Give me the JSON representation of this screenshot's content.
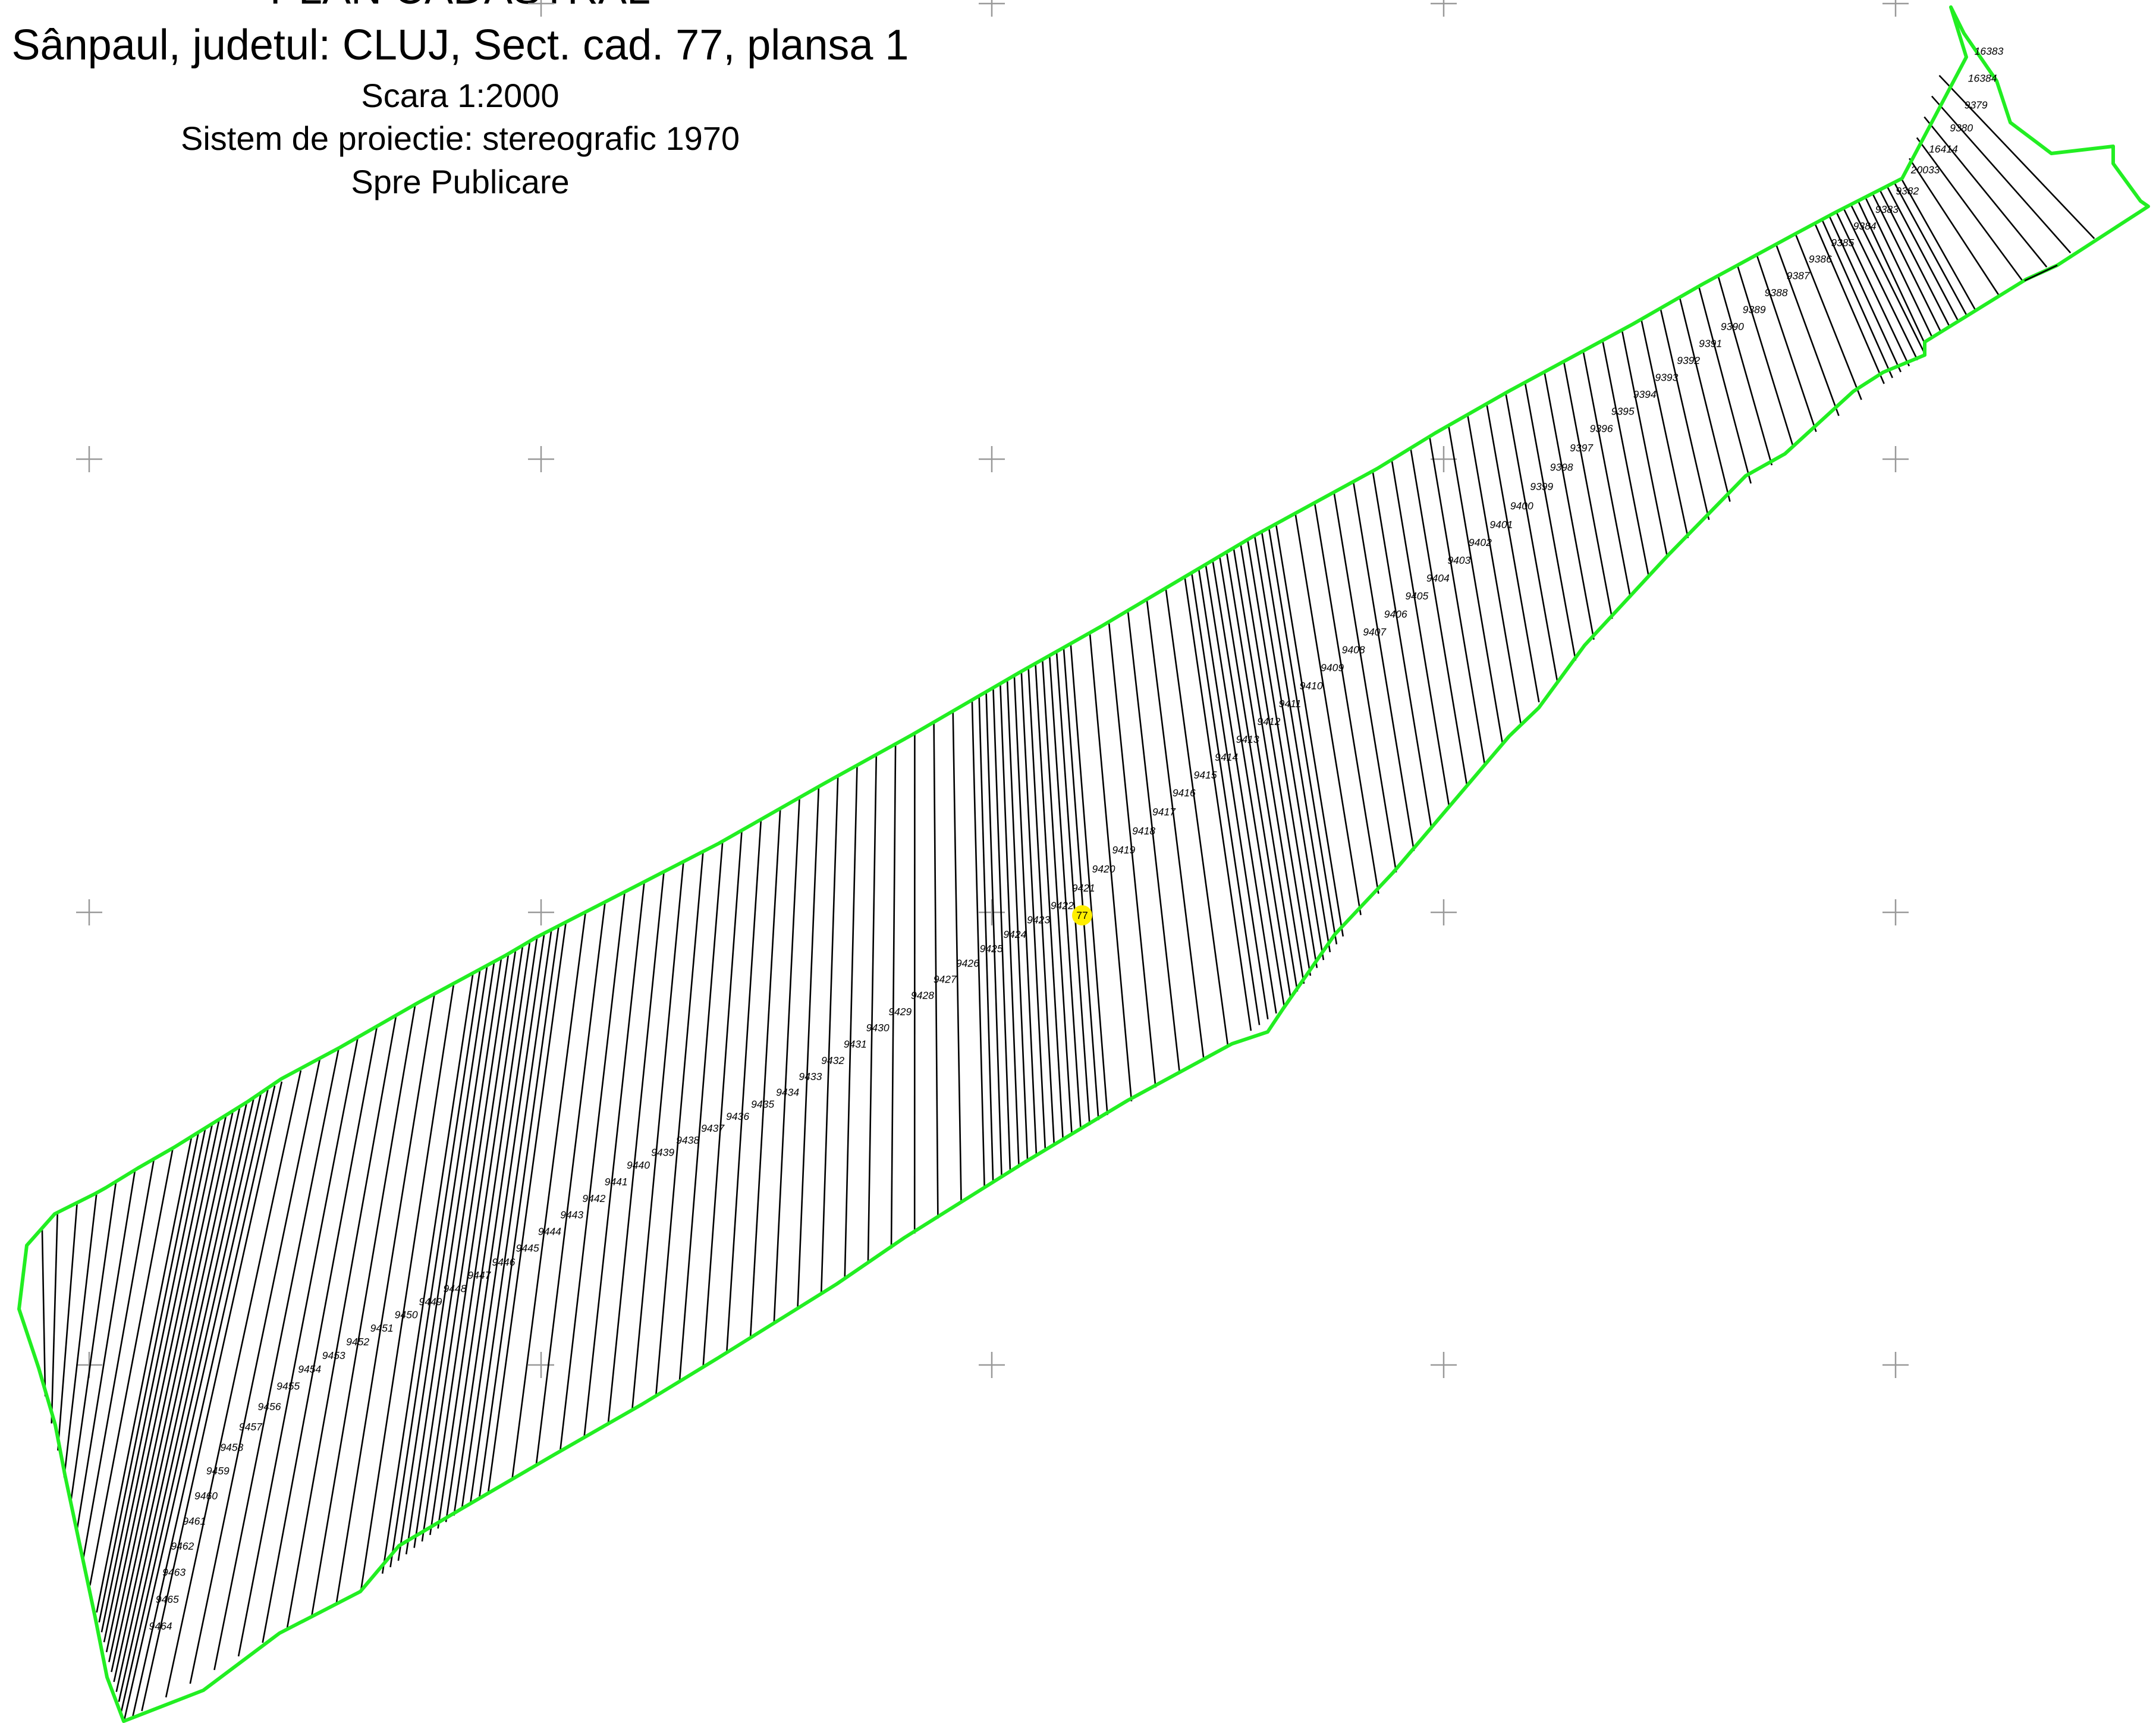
{
  "header": {
    "title": "PLAN CADASTRAL",
    "subtitle": "Sânpaul, judetul: CLUJ, Sect. cad. 77, plansa 1",
    "scale": "Scara 1:2000",
    "projection": "Sistem de proiectie: stereografic 1970",
    "status": "Spre Publicare"
  },
  "sector": {
    "label": "77",
    "marker_color": "#ffee00"
  },
  "colors": {
    "boundary": "#22ee22",
    "parcel_lines": "#000000",
    "grid_crosses": "#999999"
  },
  "parcels": [
    "16383",
    "16384",
    "9379",
    "9380",
    "16414",
    "20033",
    "9382",
    "9383",
    "9384",
    "9385",
    "9386",
    "9387",
    "9388",
    "9389",
    "9390",
    "9391",
    "9392",
    "9393",
    "9394",
    "9395",
    "9396",
    "9397",
    "9398",
    "9399",
    "9400",
    "9401",
    "9402",
    "9403",
    "9404",
    "9405",
    "9406",
    "9407",
    "9408",
    "9409",
    "9410",
    "9411",
    "9412",
    "9413",
    "9414",
    "9415",
    "9416",
    "9417",
    "9418",
    "9419",
    "9420",
    "9421",
    "9422",
    "9423",
    "9424",
    "9425",
    "9426",
    "9427",
    "9428",
    "9429",
    "9430",
    "9431",
    "9432",
    "9433",
    "9434",
    "9435",
    "9436",
    "9437",
    "9438",
    "9439",
    "9440",
    "9441",
    "9442",
    "9443",
    "9444",
    "9445",
    "9446",
    "9447",
    "9448",
    "9449",
    "9450",
    "9451",
    "9452",
    "9453",
    "9454",
    "9455",
    "9456",
    "9457",
    "9458",
    "9459",
    "9460",
    "9461",
    "9462",
    "9463",
    "9465",
    "9464"
  ]
}
